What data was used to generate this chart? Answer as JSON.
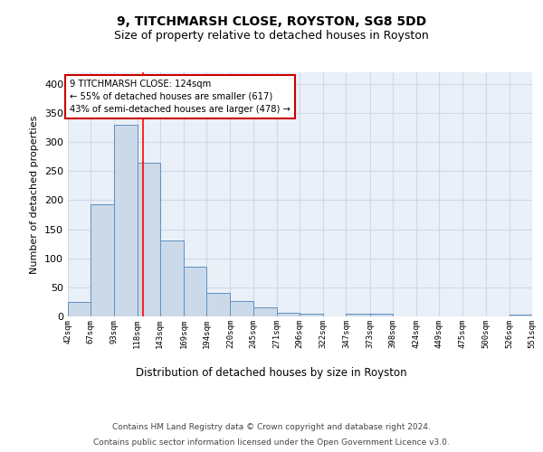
{
  "title1": "9, TITCHMARSH CLOSE, ROYSTON, SG8 5DD",
  "title2": "Size of property relative to detached houses in Royston",
  "xlabel": "Distribution of detached houses by size in Royston",
  "ylabel": "Number of detached properties",
  "bar_edges": [
    42,
    67,
    93,
    118,
    143,
    169,
    194,
    220,
    245,
    271,
    296,
    322,
    347,
    373,
    398,
    424,
    449,
    475,
    500,
    526,
    551
  ],
  "bar_heights": [
    25,
    193,
    330,
    265,
    130,
    85,
    40,
    27,
    15,
    7,
    4,
    0,
    4,
    4,
    0,
    0,
    0,
    0,
    0,
    3
  ],
  "bar_color": "#ccd9e8",
  "bar_edge_color": "#6090c0",
  "grid_color": "#d0d8e8",
  "bg_color": "#eaf0f8",
  "red_line_x": 124,
  "annotation_title": "9 TITCHMARSH CLOSE: 124sqm",
  "annotation_line1": "← 55% of detached houses are smaller (617)",
  "annotation_line2": "43% of semi-detached houses are larger (478) →",
  "annotation_box_color": "#ffffff",
  "annotation_border_color": "#cc0000",
  "footer1": "Contains HM Land Registry data © Crown copyright and database right 2024.",
  "footer2": "Contains public sector information licensed under the Open Government Licence v3.0.",
  "ylim": [
    0,
    420
  ],
  "yticks": [
    0,
    50,
    100,
    150,
    200,
    250,
    300,
    350,
    400
  ],
  "tick_labels": [
    "42sqm",
    "67sqm",
    "93sqm",
    "118sqm",
    "143sqm",
    "169sqm",
    "194sqm",
    "220sqm",
    "245sqm",
    "271sqm",
    "296sqm",
    "322sqm",
    "347sqm",
    "373sqm",
    "398sqm",
    "424sqm",
    "449sqm",
    "475sqm",
    "500sqm",
    "526sqm",
    "551sqm"
  ]
}
